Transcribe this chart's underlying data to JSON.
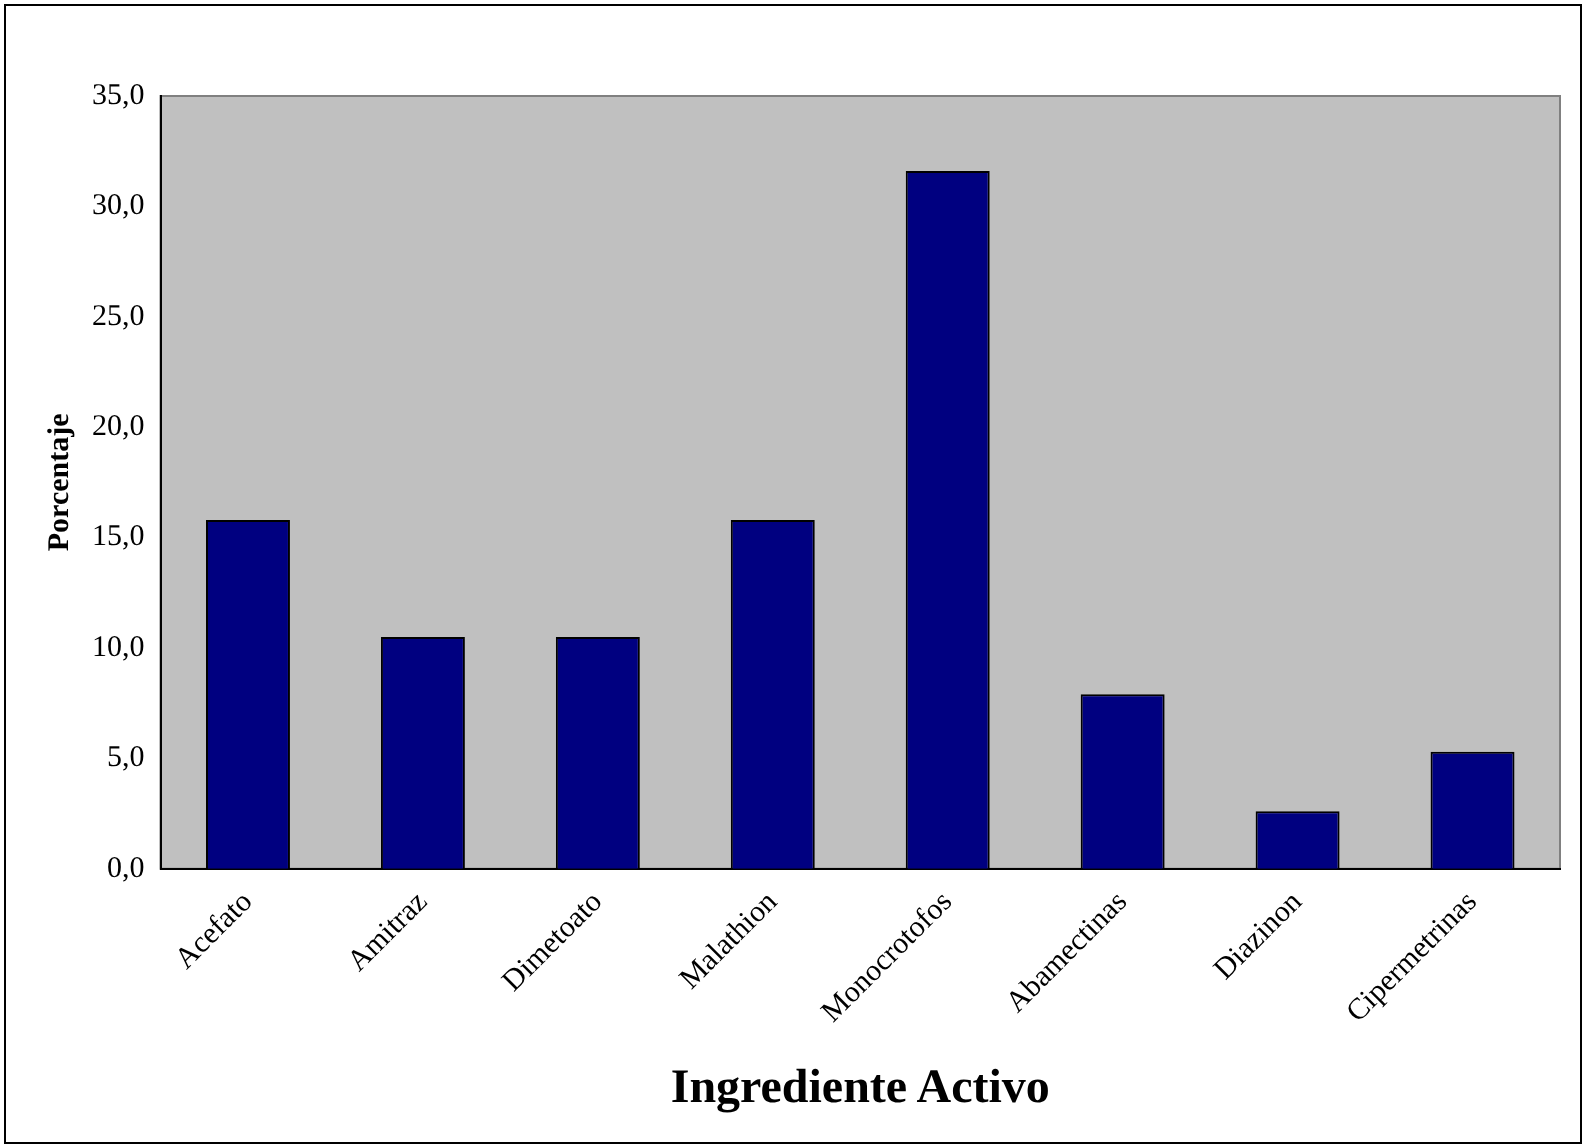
{
  "chart_data": {
    "type": "bar",
    "xlabel": "Ingrediente Activo",
    "ylabel": "Porcentaje",
    "categories": [
      "Acefato",
      "Amitraz",
      "Dimetoato",
      "Malathion",
      "Monocrotofos",
      "Abamectinas",
      "Diazinon",
      "Cipermetrinas"
    ],
    "values": [
      15.8,
      10.5,
      10.5,
      15.8,
      31.6,
      7.9,
      2.6,
      5.3
    ],
    "color": "#000080",
    "ylim": [
      0,
      35
    ],
    "yticks": [
      {
        "value": 0,
        "label": "0,0"
      },
      {
        "value": 5,
        "label": "5,0"
      },
      {
        "value": 10,
        "label": "10,0"
      },
      {
        "value": 15,
        "label": "15,0"
      },
      {
        "value": 20,
        "label": "20,0"
      },
      {
        "value": 25,
        "label": "25,0"
      },
      {
        "value": 30,
        "label": "30,0"
      },
      {
        "value": 35,
        "label": "35,0"
      }
    ],
    "grid": false,
    "legend": false
  }
}
